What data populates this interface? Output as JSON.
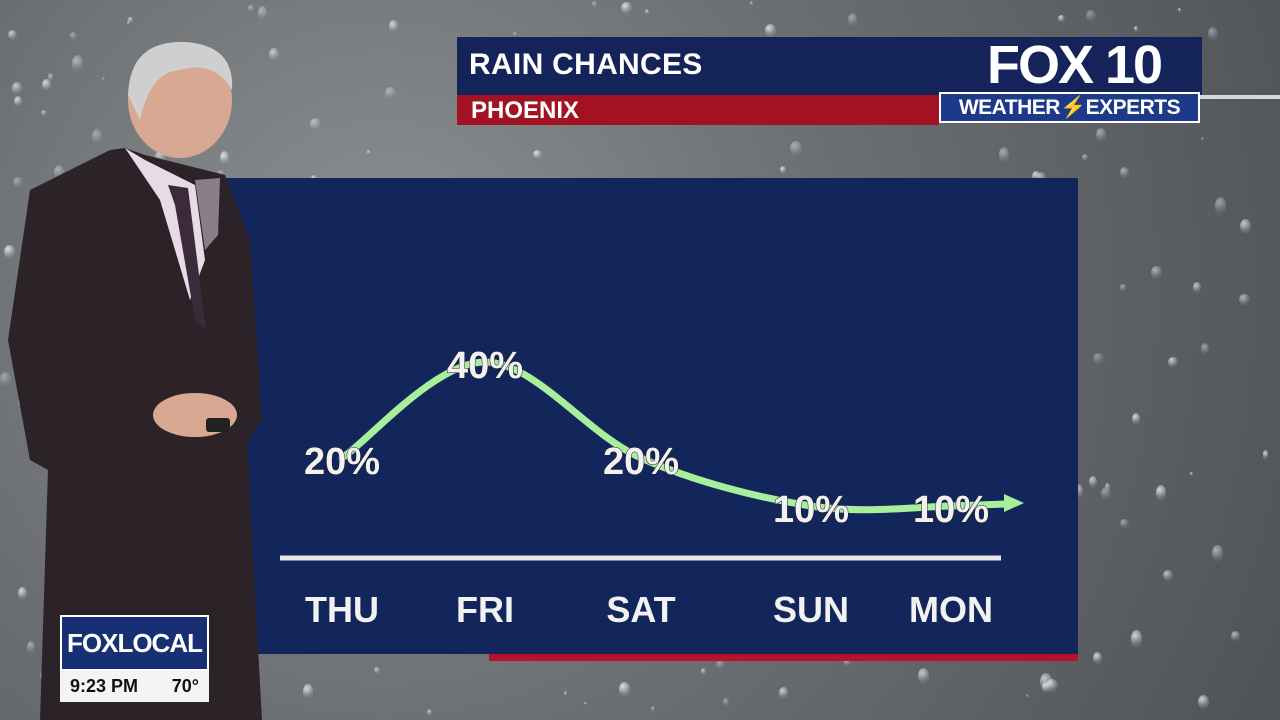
{
  "header": {
    "title": "RAIN CHANCES",
    "location": "PHOENIX",
    "brand": "FOX 10",
    "brand_tag": "WEATHER⚡EXPERTS"
  },
  "colors": {
    "navy": "#14235a",
    "panel": "#13265c",
    "red": "#a31223",
    "curve": "#a8ef9c"
  },
  "chart_data": {
    "type": "line",
    "title": "RAIN CHANCES",
    "categories": [
      "THU",
      "FRI",
      "SAT",
      "SUN",
      "MON"
    ],
    "values": [
      20,
      40,
      20,
      10,
      10
    ],
    "labels": [
      "20%",
      "40%",
      "20%",
      "10%",
      "10%"
    ],
    "unit": "%",
    "ylim": [
      0,
      45
    ],
    "grid": false,
    "legend": "none"
  },
  "bug": {
    "logo": "FOXLOCAL",
    "time": "9:23 PM",
    "temp": "70°"
  }
}
